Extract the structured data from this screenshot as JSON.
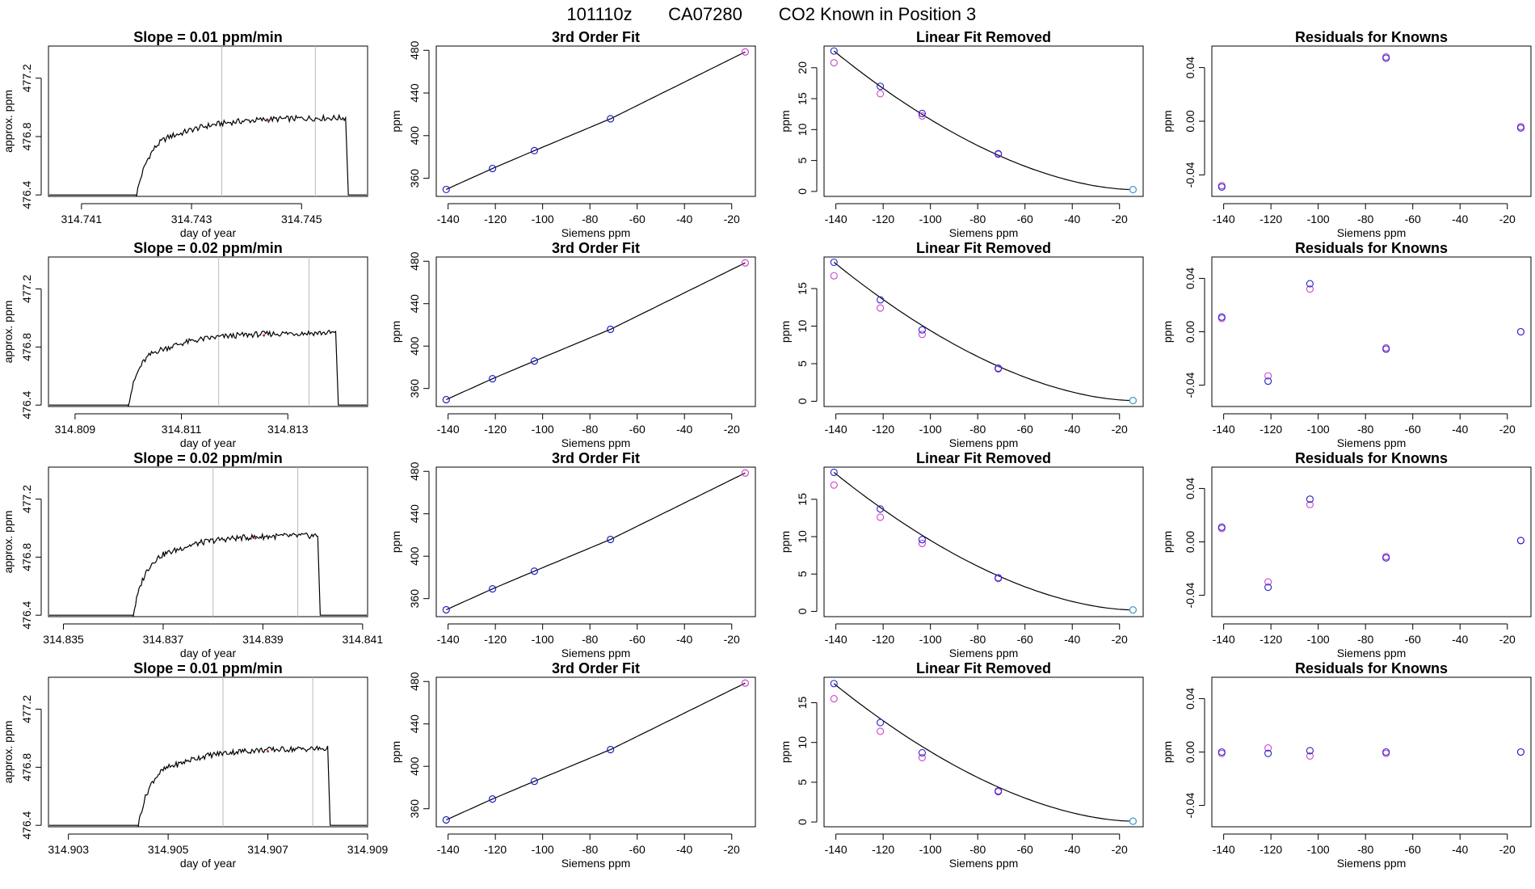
{
  "main_title": {
    "date": "101110z",
    "tank": "CA07280",
    "desc": "CO2 Known in Position  3"
  },
  "colors": {
    "blue": "#2222cc",
    "magenta": "#cc44cc",
    "cyan": "#33aacc",
    "line": "#000000",
    "vline": "#bbbbbb",
    "red": "#cc2222"
  },
  "chart_data": [
    {
      "row": 0,
      "trace": {
        "type": "line",
        "title": "Slope =  0.01  ppm/min",
        "xlabel": "day of year",
        "ylabel": "approx. ppm",
        "xlim": [
          314.7404,
          314.7462
        ],
        "xticks": [
          314.741,
          314.743,
          314.745
        ],
        "xtick_labels": [
          "314.741",
          "314.743",
          "314.745"
        ],
        "ylim": [
          476.39,
          477.42
        ],
        "yticks": [
          476.4,
          476.8,
          477.2
        ],
        "ytick_labels": [
          "476.4",
          "476.8",
          "477.2"
        ],
        "t_start": 314.742,
        "t_rise_end": 314.7428,
        "t_end": 314.7458,
        "t_drop": 314.74585,
        "baseline": 476.4,
        "plateau": 476.91,
        "vlines": [
          314.74355,
          314.74525
        ]
      },
      "fit": {
        "type": "scatter",
        "title": "3rd Order Fit",
        "xlabel": "Siemens ppm",
        "ylabel": "ppm",
        "x": [
          -140.8,
          -121.2,
          -103.5,
          -71.3,
          -14.3
        ],
        "y": [
          349.5,
          369.2,
          385.9,
          415.8,
          478.5
        ],
        "xlim": [
          -145,
          -10
        ],
        "ylim": [
          343,
          484
        ],
        "xticks": [
          -140,
          -120,
          -100,
          -80,
          -60,
          -40,
          -20
        ],
        "xtick_labels": [
          "-140",
          "-120",
          "-100",
          "-80",
          "-60",
          "-40",
          "-20"
        ],
        "yticks": [
          360,
          400,
          440,
          480
        ],
        "ytick_labels": [
          "360",
          "400",
          "440",
          "480"
        ]
      },
      "linfit": {
        "type": "scatter",
        "title": "Linear Fit Removed",
        "xlabel": "Siemens ppm",
        "ylabel": "ppm",
        "x": [
          -140.8,
          -121.2,
          -103.5,
          -71.3,
          -14.3
        ],
        "y_blue": [
          22.7,
          17.0,
          12.6,
          6.1,
          0.3
        ],
        "y_mag": [
          20.8,
          15.8,
          12.2,
          6.0,
          0.3
        ],
        "xlim": [
          -145,
          -10
        ],
        "ylim": [
          -0.8,
          23.5
        ],
        "xticks": [
          -140,
          -120,
          -100,
          -80,
          -60,
          -40,
          -20
        ],
        "xtick_labels": [
          "-140",
          "-120",
          "-100",
          "-80",
          "-60",
          "-40",
          "-20"
        ],
        "yticks": [
          0,
          5,
          10,
          15,
          20
        ],
        "ytick_labels": [
          "0",
          "5",
          "10",
          "15",
          "20"
        ]
      },
      "resid": {
        "type": "scatter",
        "title": "Residuals for Knowns",
        "xlabel": "Siemens ppm",
        "ylabel": "ppm",
        "x": [
          -140.8,
          -71.3,
          -14.3
        ],
        "y_blue": [
          -0.049,
          0.047,
          -0.005
        ],
        "y_mag": [
          -0.048,
          0.048,
          -0.004
        ],
        "xlim": [
          -145,
          -10
        ],
        "ylim": [
          -0.056,
          0.056
        ],
        "xticks": [
          -140,
          -120,
          -100,
          -80,
          -60,
          -40,
          -20
        ],
        "xtick_labels": [
          "-140",
          "-120",
          "-100",
          "-80",
          "-60",
          "-40",
          "-20"
        ],
        "yticks": [
          -0.04,
          0.0,
          0.04
        ],
        "ytick_labels": [
          "-0.04",
          "0.00",
          "0.04"
        ]
      }
    },
    {
      "row": 1,
      "trace": {
        "type": "line",
        "title": "Slope =  0.02  ppm/min",
        "xlabel": "day of year",
        "ylabel": "approx. ppm",
        "xlim": [
          314.8085,
          314.8145
        ],
        "xticks": [
          314.809,
          314.811,
          314.813
        ],
        "xtick_labels": [
          "314.809",
          "314.811",
          "314.813"
        ],
        "ylim": [
          476.39,
          477.42
        ],
        "yticks": [
          476.4,
          476.8,
          477.2
        ],
        "ytick_labels": [
          "476.4",
          "476.8",
          "477.2"
        ],
        "t_start": 314.81,
        "t_rise_end": 314.8107,
        "t_end": 314.8139,
        "t_drop": 314.81395,
        "baseline": 476.4,
        "plateau": 476.88,
        "vlines": [
          314.8117,
          314.8134
        ]
      },
      "fit": {
        "type": "scatter",
        "title": "3rd Order Fit",
        "xlabel": "Siemens ppm",
        "ylabel": "ppm",
        "x": [
          -140.8,
          -121.2,
          -103.5,
          -71.3,
          -14.3
        ],
        "y": [
          349.5,
          369.2,
          385.9,
          415.8,
          478.5
        ],
        "xlim": [
          -145,
          -10
        ],
        "ylim": [
          343,
          484
        ],
        "xticks": [
          -140,
          -120,
          -100,
          -80,
          -60,
          -40,
          -20
        ],
        "xtick_labels": [
          "-140",
          "-120",
          "-100",
          "-80",
          "-60",
          "-40",
          "-20"
        ],
        "yticks": [
          360,
          400,
          440,
          480
        ],
        "ytick_labels": [
          "360",
          "400",
          "440",
          "480"
        ]
      },
      "linfit": {
        "type": "scatter",
        "title": "Linear Fit Removed",
        "xlabel": "Siemens ppm",
        "ylabel": "ppm",
        "x": [
          -140.8,
          -121.2,
          -103.5,
          -71.3,
          -14.3
        ],
        "y_blue": [
          18.5,
          13.5,
          9.5,
          4.4,
          0.1
        ],
        "y_mag": [
          16.7,
          12.4,
          8.9,
          4.3,
          0.1
        ],
        "xlim": [
          -145,
          -10
        ],
        "ylim": [
          -0.7,
          19.2
        ],
        "xticks": [
          -140,
          -120,
          -100,
          -80,
          -60,
          -40,
          -20
        ],
        "xtick_labels": [
          "-140",
          "-120",
          "-100",
          "-80",
          "-60",
          "-40",
          "-20"
        ],
        "yticks": [
          0,
          5,
          10,
          15
        ],
        "ytick_labels": [
          "0",
          "5",
          "10",
          "15"
        ]
      },
      "resid": {
        "type": "scatter",
        "title": "Residuals for Knowns",
        "xlabel": "Siemens ppm",
        "ylabel": "ppm",
        "x": [
          -140.8,
          -121.2,
          -103.5,
          -71.3,
          -14.3
        ],
        "y_blue": [
          0.011,
          -0.037,
          0.036,
          -0.013,
          0.0
        ],
        "y_mag": [
          0.01,
          -0.033,
          0.032,
          -0.012,
          0.0
        ],
        "xlim": [
          -145,
          -10
        ],
        "ylim": [
          -0.056,
          0.056
        ],
        "xticks": [
          -140,
          -120,
          -100,
          -80,
          -60,
          -40,
          -20
        ],
        "xtick_labels": [
          "-140",
          "-120",
          "-100",
          "-80",
          "-60",
          "-40",
          "-20"
        ],
        "yticks": [
          -0.04,
          0.0,
          0.04
        ],
        "ytick_labels": [
          "-0.04",
          "0.00",
          "0.04"
        ]
      }
    },
    {
      "row": 2,
      "trace": {
        "type": "line",
        "title": "Slope =  0.02  ppm/min",
        "xlabel": "day of year",
        "ylabel": "approx. ppm",
        "xlim": [
          314.8347,
          314.8411
        ],
        "xticks": [
          314.835,
          314.837,
          314.839,
          314.841
        ],
        "xtick_labels": [
          "314.835",
          "314.837",
          "314.839",
          "314.841"
        ],
        "ylim": [
          476.39,
          477.42
        ],
        "yticks": [
          476.4,
          476.8,
          477.2
        ],
        "ytick_labels": [
          "476.4",
          "476.8",
          "477.2"
        ],
        "t_start": 314.8364,
        "t_rise_end": 314.8372,
        "t_end": 314.8401,
        "t_drop": 314.84015,
        "baseline": 476.4,
        "plateau": 476.93,
        "vlines": [
          314.838,
          314.8397
        ]
      },
      "fit": {
        "type": "scatter",
        "title": "3rd Order Fit",
        "xlabel": "Siemens ppm",
        "ylabel": "ppm",
        "x": [
          -140.8,
          -121.2,
          -103.5,
          -71.3,
          -14.3
        ],
        "y": [
          349.5,
          369.2,
          385.9,
          415.8,
          478.5
        ],
        "xlim": [
          -145,
          -10
        ],
        "ylim": [
          343,
          484
        ],
        "xticks": [
          -140,
          -120,
          -100,
          -80,
          -60,
          -40,
          -20
        ],
        "xtick_labels": [
          "-140",
          "-120",
          "-100",
          "-80",
          "-60",
          "-40",
          "-20"
        ],
        "yticks": [
          360,
          400,
          440,
          480
        ],
        "ytick_labels": [
          "360",
          "400",
          "440",
          "480"
        ]
      },
      "linfit": {
        "type": "scatter",
        "title": "Linear Fit Removed",
        "xlabel": "Siemens ppm",
        "ylabel": "ppm",
        "x": [
          -140.8,
          -121.2,
          -103.5,
          -71.3,
          -14.3
        ],
        "y_blue": [
          18.6,
          13.7,
          9.6,
          4.5,
          0.2
        ],
        "y_mag": [
          16.9,
          12.6,
          9.1,
          4.4,
          0.2
        ],
        "xlim": [
          -145,
          -10
        ],
        "ylim": [
          -0.7,
          19.3
        ],
        "xticks": [
          -140,
          -120,
          -100,
          -80,
          -60,
          -40,
          -20
        ],
        "xtick_labels": [
          "-140",
          "-120",
          "-100",
          "-80",
          "-60",
          "-40",
          "-20"
        ],
        "yticks": [
          0,
          5,
          10,
          15
        ],
        "ytick_labels": [
          "0",
          "5",
          "10",
          "15"
        ]
      },
      "resid": {
        "type": "scatter",
        "title": "Residuals for Knowns",
        "xlabel": "Siemens ppm",
        "ylabel": "ppm",
        "x": [
          -140.8,
          -121.2,
          -103.5,
          -71.3,
          -14.3
        ],
        "y_blue": [
          0.011,
          -0.034,
          0.032,
          -0.012,
          0.001
        ],
        "y_mag": [
          0.01,
          -0.03,
          0.028,
          -0.011,
          0.001
        ],
        "xlim": [
          -145,
          -10
        ],
        "ylim": [
          -0.056,
          0.056
        ],
        "xticks": [
          -140,
          -120,
          -100,
          -80,
          -60,
          -40,
          -20
        ],
        "xtick_labels": [
          "-140",
          "-120",
          "-100",
          "-80",
          "-60",
          "-40",
          "-20"
        ],
        "yticks": [
          -0.04,
          0.0,
          0.04
        ],
        "ytick_labels": [
          "-0.04",
          "0.00",
          "0.04"
        ]
      }
    },
    {
      "row": 3,
      "trace": {
        "type": "line",
        "title": "Slope =  0.01  ppm/min",
        "xlabel": "day of year",
        "ylabel": "approx. ppm",
        "xlim": [
          314.9026,
          314.909
        ],
        "xticks": [
          314.903,
          314.905,
          314.907,
          314.909
        ],
        "xtick_labels": [
          "314.903",
          "314.905",
          "314.907",
          "314.909"
        ],
        "ylim": [
          476.39,
          477.42
        ],
        "yticks": [
          476.4,
          476.8,
          477.2
        ],
        "ytick_labels": [
          "476.4",
          "476.8",
          "477.2"
        ],
        "t_start": 314.9044,
        "t_rise_end": 314.9052,
        "t_end": 314.9082,
        "t_drop": 314.90825,
        "baseline": 476.4,
        "plateau": 476.91,
        "vlines": [
          314.9061,
          314.9079
        ]
      },
      "fit": {
        "type": "scatter",
        "title": "3rd Order Fit",
        "xlabel": "Siemens ppm",
        "ylabel": "ppm",
        "x": [
          -140.8,
          -121.2,
          -103.5,
          -71.3,
          -14.3
        ],
        "y": [
          349.5,
          369.2,
          385.9,
          415.8,
          478.5
        ],
        "xlim": [
          -145,
          -10
        ],
        "ylim": [
          343,
          484
        ],
        "xticks": [
          -140,
          -120,
          -100,
          -80,
          -60,
          -40,
          -20
        ],
        "xtick_labels": [
          "-140",
          "-120",
          "-100",
          "-80",
          "-60",
          "-40",
          "-20"
        ],
        "yticks": [
          360,
          400,
          440,
          480
        ],
        "ytick_labels": [
          "360",
          "400",
          "440",
          "480"
        ]
      },
      "linfit": {
        "type": "scatter",
        "title": "Linear Fit Removed",
        "xlabel": "Siemens ppm",
        "ylabel": "ppm",
        "x": [
          -140.8,
          -121.2,
          -103.5,
          -71.3,
          -14.3
        ],
        "y_blue": [
          17.4,
          12.5,
          8.7,
          3.9,
          0.1
        ],
        "y_mag": [
          15.5,
          11.4,
          8.1,
          3.8,
          0.1
        ],
        "xlim": [
          -145,
          -10
        ],
        "ylim": [
          -0.6,
          18.2
        ],
        "xticks": [
          -140,
          -120,
          -100,
          -80,
          -60,
          -40,
          -20
        ],
        "xtick_labels": [
          "-140",
          "-120",
          "-100",
          "-80",
          "-60",
          "-40",
          "-20"
        ],
        "yticks": [
          0,
          5,
          10,
          15
        ],
        "ytick_labels": [
          "0",
          "5",
          "10",
          "15"
        ]
      },
      "resid": {
        "type": "scatter",
        "title": "Residuals for Knowns",
        "xlabel": "Siemens ppm",
        "ylabel": "ppm",
        "x": [
          -140.8,
          -121.2,
          -103.5,
          -71.3,
          -14.3
        ],
        "y_blue": [
          0.0,
          -0.001,
          0.001,
          0.0,
          0.0
        ],
        "y_mag": [
          -0.001,
          0.003,
          -0.003,
          -0.001,
          0.0
        ],
        "xlim": [
          -145,
          -10
        ],
        "ylim": [
          -0.056,
          0.056
        ],
        "xticks": [
          -140,
          -120,
          -100,
          -80,
          -60,
          -40,
          -20
        ],
        "xtick_labels": [
          "-140",
          "-120",
          "-100",
          "-80",
          "-60",
          "-40",
          "-20"
        ],
        "yticks": [
          -0.04,
          0.0,
          0.04
        ],
        "ytick_labels": [
          "-0.04",
          "0.00",
          "0.04"
        ]
      }
    }
  ]
}
